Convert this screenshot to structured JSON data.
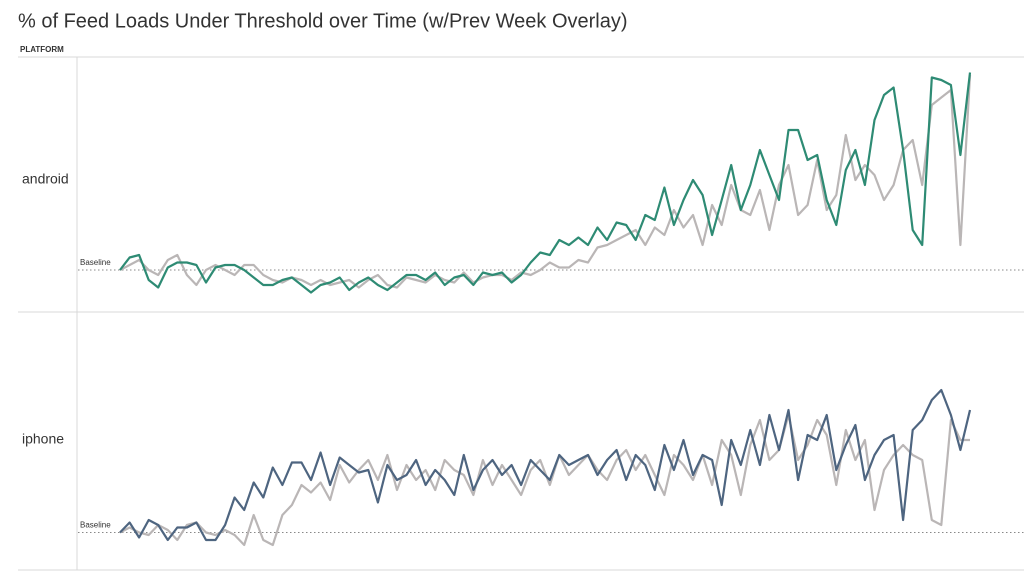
{
  "title": "% of Feed Loads Under Threshold over Time (w/Prev Week Overlay)",
  "facet_header": "PLATFORM",
  "chart_data": [
    {
      "type": "line",
      "label": "android",
      "annotation": "Baseline",
      "baseline": 16,
      "ylim": [
        0,
        100
      ],
      "series": [
        {
          "color": "#bab6b6",
          "values": [
            16,
            18,
            20,
            16,
            14,
            20,
            22,
            14,
            10,
            16,
            18,
            16,
            14,
            18,
            18,
            14,
            12,
            11,
            13,
            12,
            10,
            12,
            10,
            11,
            12,
            9,
            12,
            14,
            10,
            9,
            13,
            12,
            11,
            14,
            12,
            11,
            15,
            11,
            13,
            14,
            14,
            12,
            15,
            14,
            16,
            19,
            17,
            17,
            20,
            19,
            25,
            26,
            28,
            30,
            32,
            26,
            33,
            30,
            40,
            33,
            38,
            26,
            42,
            34,
            50,
            40,
            38,
            48,
            32,
            50,
            58,
            38,
            42,
            60,
            40,
            46,
            70,
            52,
            58,
            54,
            44,
            50,
            64,
            68,
            50,
            82,
            85,
            88,
            26,
            94
          ]
        },
        {
          "color": "#2e8b74",
          "values": [
            16,
            21,
            22,
            12,
            9,
            17,
            19,
            19,
            18,
            11,
            17,
            18,
            18,
            16,
            13,
            10,
            10,
            12,
            13,
            10,
            7,
            10,
            11,
            13,
            8,
            11,
            13,
            10,
            8,
            11,
            14,
            14,
            12,
            15,
            10,
            13,
            14,
            10,
            15,
            14,
            15,
            11,
            14,
            19,
            23,
            22,
            28,
            26,
            29,
            26,
            33,
            28,
            35,
            34,
            28,
            38,
            36,
            49,
            34,
            44,
            52,
            46,
            30,
            44,
            58,
            40,
            50,
            64,
            54,
            44,
            72,
            72,
            60,
            62,
            44,
            34,
            56,
            64,
            50,
            76,
            86,
            89,
            64,
            32,
            26,
            93,
            92,
            90,
            62,
            95
          ]
        }
      ]
    },
    {
      "type": "line",
      "label": "iphone",
      "annotation": "Baseline",
      "baseline": 15,
      "ylim": [
        0,
        100
      ],
      "series": [
        {
          "color": "#bab6b6",
          "values": [
            15,
            17,
            15,
            14,
            18,
            16,
            12,
            18,
            19,
            15,
            14,
            16,
            14,
            10,
            22,
            12,
            10,
            22,
            26,
            34,
            31,
            35,
            28,
            42,
            35,
            40,
            44,
            36,
            46,
            32,
            42,
            36,
            40,
            32,
            44,
            40,
            38,
            30,
            44,
            34,
            42,
            36,
            30,
            40,
            44,
            34,
            46,
            38,
            42,
            46,
            40,
            36,
            44,
            48,
            40,
            46,
            38,
            30,
            46,
            42,
            36,
            46,
            34,
            52,
            46,
            30,
            50,
            60,
            44,
            48,
            62,
            44,
            50,
            60,
            54,
            34,
            56,
            44,
            52,
            24,
            40,
            46,
            50,
            46,
            44,
            20,
            18,
            60,
            52,
            52
          ]
        },
        {
          "color": "#4e6580",
          "values": [
            15,
            19,
            13,
            20,
            18,
            12,
            17,
            17,
            19,
            12,
            12,
            18,
            29,
            24,
            35,
            29,
            41,
            34,
            43,
            43,
            36,
            47,
            34,
            45,
            42,
            39,
            40,
            27,
            42,
            36,
            38,
            44,
            34,
            40,
            36,
            30,
            46,
            32,
            40,
            44,
            38,
            42,
            34,
            44,
            40,
            36,
            46,
            42,
            44,
            46,
            38,
            44,
            48,
            36,
            46,
            42,
            32,
            50,
            40,
            52,
            38,
            46,
            44,
            26,
            52,
            42,
            56,
            42,
            62,
            48,
            64,
            36,
            54,
            52,
            62,
            40,
            50,
            58,
            36,
            46,
            52,
            54,
            20,
            56,
            60,
            68,
            72,
            62,
            48,
            64
          ]
        }
      ]
    }
  ]
}
